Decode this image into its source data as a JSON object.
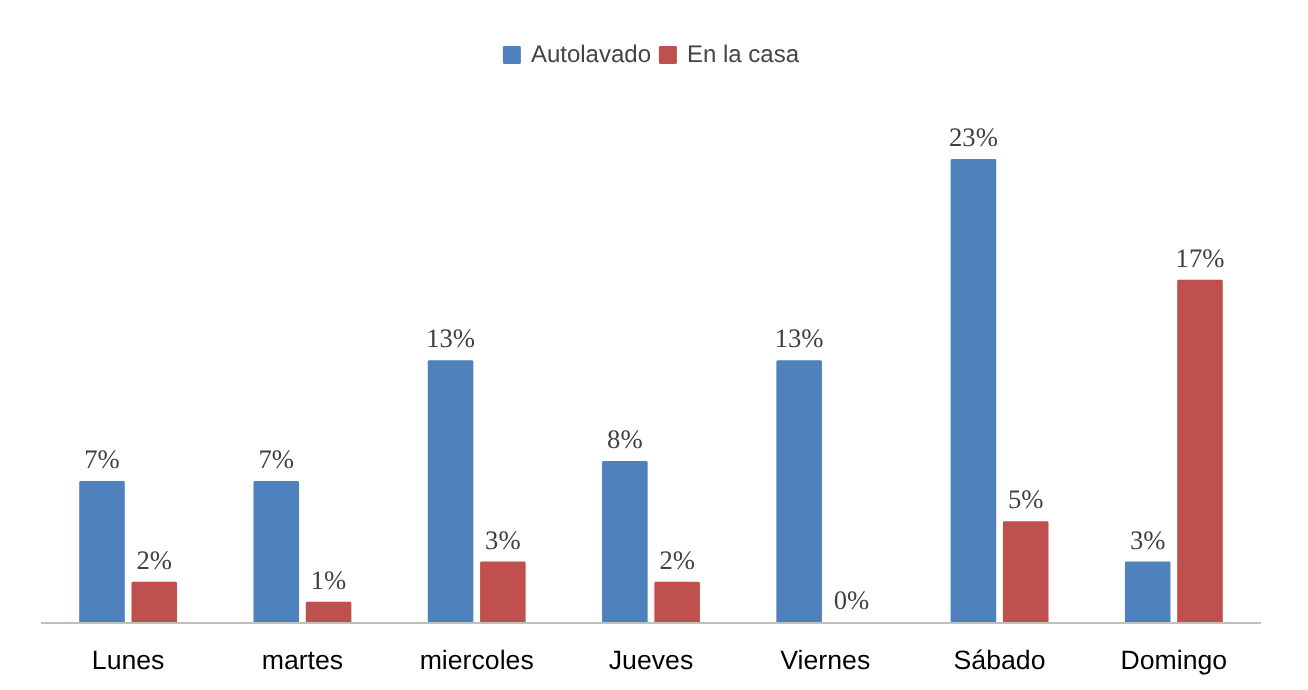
{
  "chart_data": {
    "type": "bar",
    "categories": [
      "Lunes",
      "martes",
      "miercoles",
      "Jueves",
      "Viernes",
      "Sábado",
      "Domingo"
    ],
    "series": [
      {
        "name": "Autolavado",
        "color": "#4f81bd",
        "values": [
          7,
          7,
          13,
          8,
          13,
          23,
          3
        ],
        "value_labels": [
          "7%",
          "7%",
          "13%",
          "8%",
          "13%",
          "23%",
          "3%"
        ]
      },
      {
        "name": "En la casa",
        "color": "#c0504d",
        "values": [
          2,
          1,
          3,
          2,
          0,
          5,
          17
        ],
        "value_labels": [
          "2%",
          "1%",
          "3%",
          "2%",
          "0%",
          "5%",
          "17%"
        ]
      }
    ],
    "legend": "top"
  }
}
